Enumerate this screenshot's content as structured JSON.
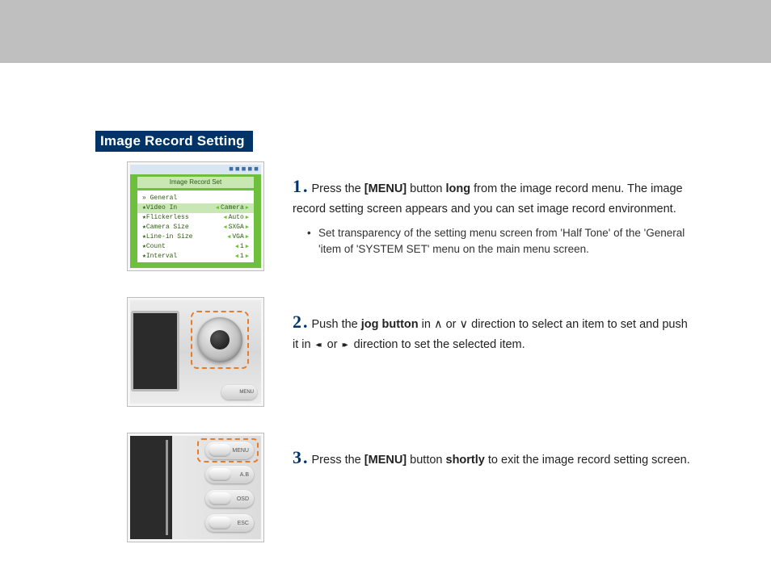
{
  "section_title": "Image Record Setting",
  "steps": [
    {
      "num": "1",
      "text_parts": {
        "a": "Press the ",
        "b": "[MENU]",
        "c": " button ",
        "d": "long",
        "e": " from the image record menu. The image record setting screen appears and you can set image record environment."
      },
      "bullet": "Set transparency of the setting menu screen from 'Half Tone' of the 'General 'item of 'SYSTEM SET' menu on the main menu screen."
    },
    {
      "num": "2",
      "text_parts": {
        "a": "Push the ",
        "b": "jog button",
        "c": " in ∧ or ∨ direction to select an item to set and push it in ",
        "d": "◂◂",
        "e": " or ",
        "f": "▸▸",
        "g": " direction to set the selected item."
      }
    },
    {
      "num": "3",
      "text_parts": {
        "a": "Press the ",
        "b": "[MENU]",
        "c": " button ",
        "d": "shortly",
        "e": " to exit the image record setting screen."
      }
    }
  ],
  "thumb1": {
    "header": "Image Record Set",
    "status_icons": "◼ ◼ ◼ ◼ ◼",
    "rows": [
      {
        "l": "» General",
        "r": ""
      },
      {
        "l": "  ★Video In",
        "r": "Camera",
        "active": true
      },
      {
        "l": "  ★Flickerless",
        "r": "Auto"
      },
      {
        "l": "  ★Camera Size",
        "r": "SXGA"
      },
      {
        "l": "  ★Line-in Size",
        "r": "VGA"
      },
      {
        "l": "  ★Count",
        "r": "1"
      },
      {
        "l": "  ★Interval",
        "r": "1"
      }
    ]
  },
  "thumb2": {
    "menu_label": "MENU"
  },
  "thumb3": {
    "buttons": [
      "MENU",
      "A.B",
      "OSD",
      "ESC"
    ]
  },
  "colors": {
    "accent": "#003366",
    "highlight": "#e97c2a",
    "topbar": "#bfbfbf"
  }
}
